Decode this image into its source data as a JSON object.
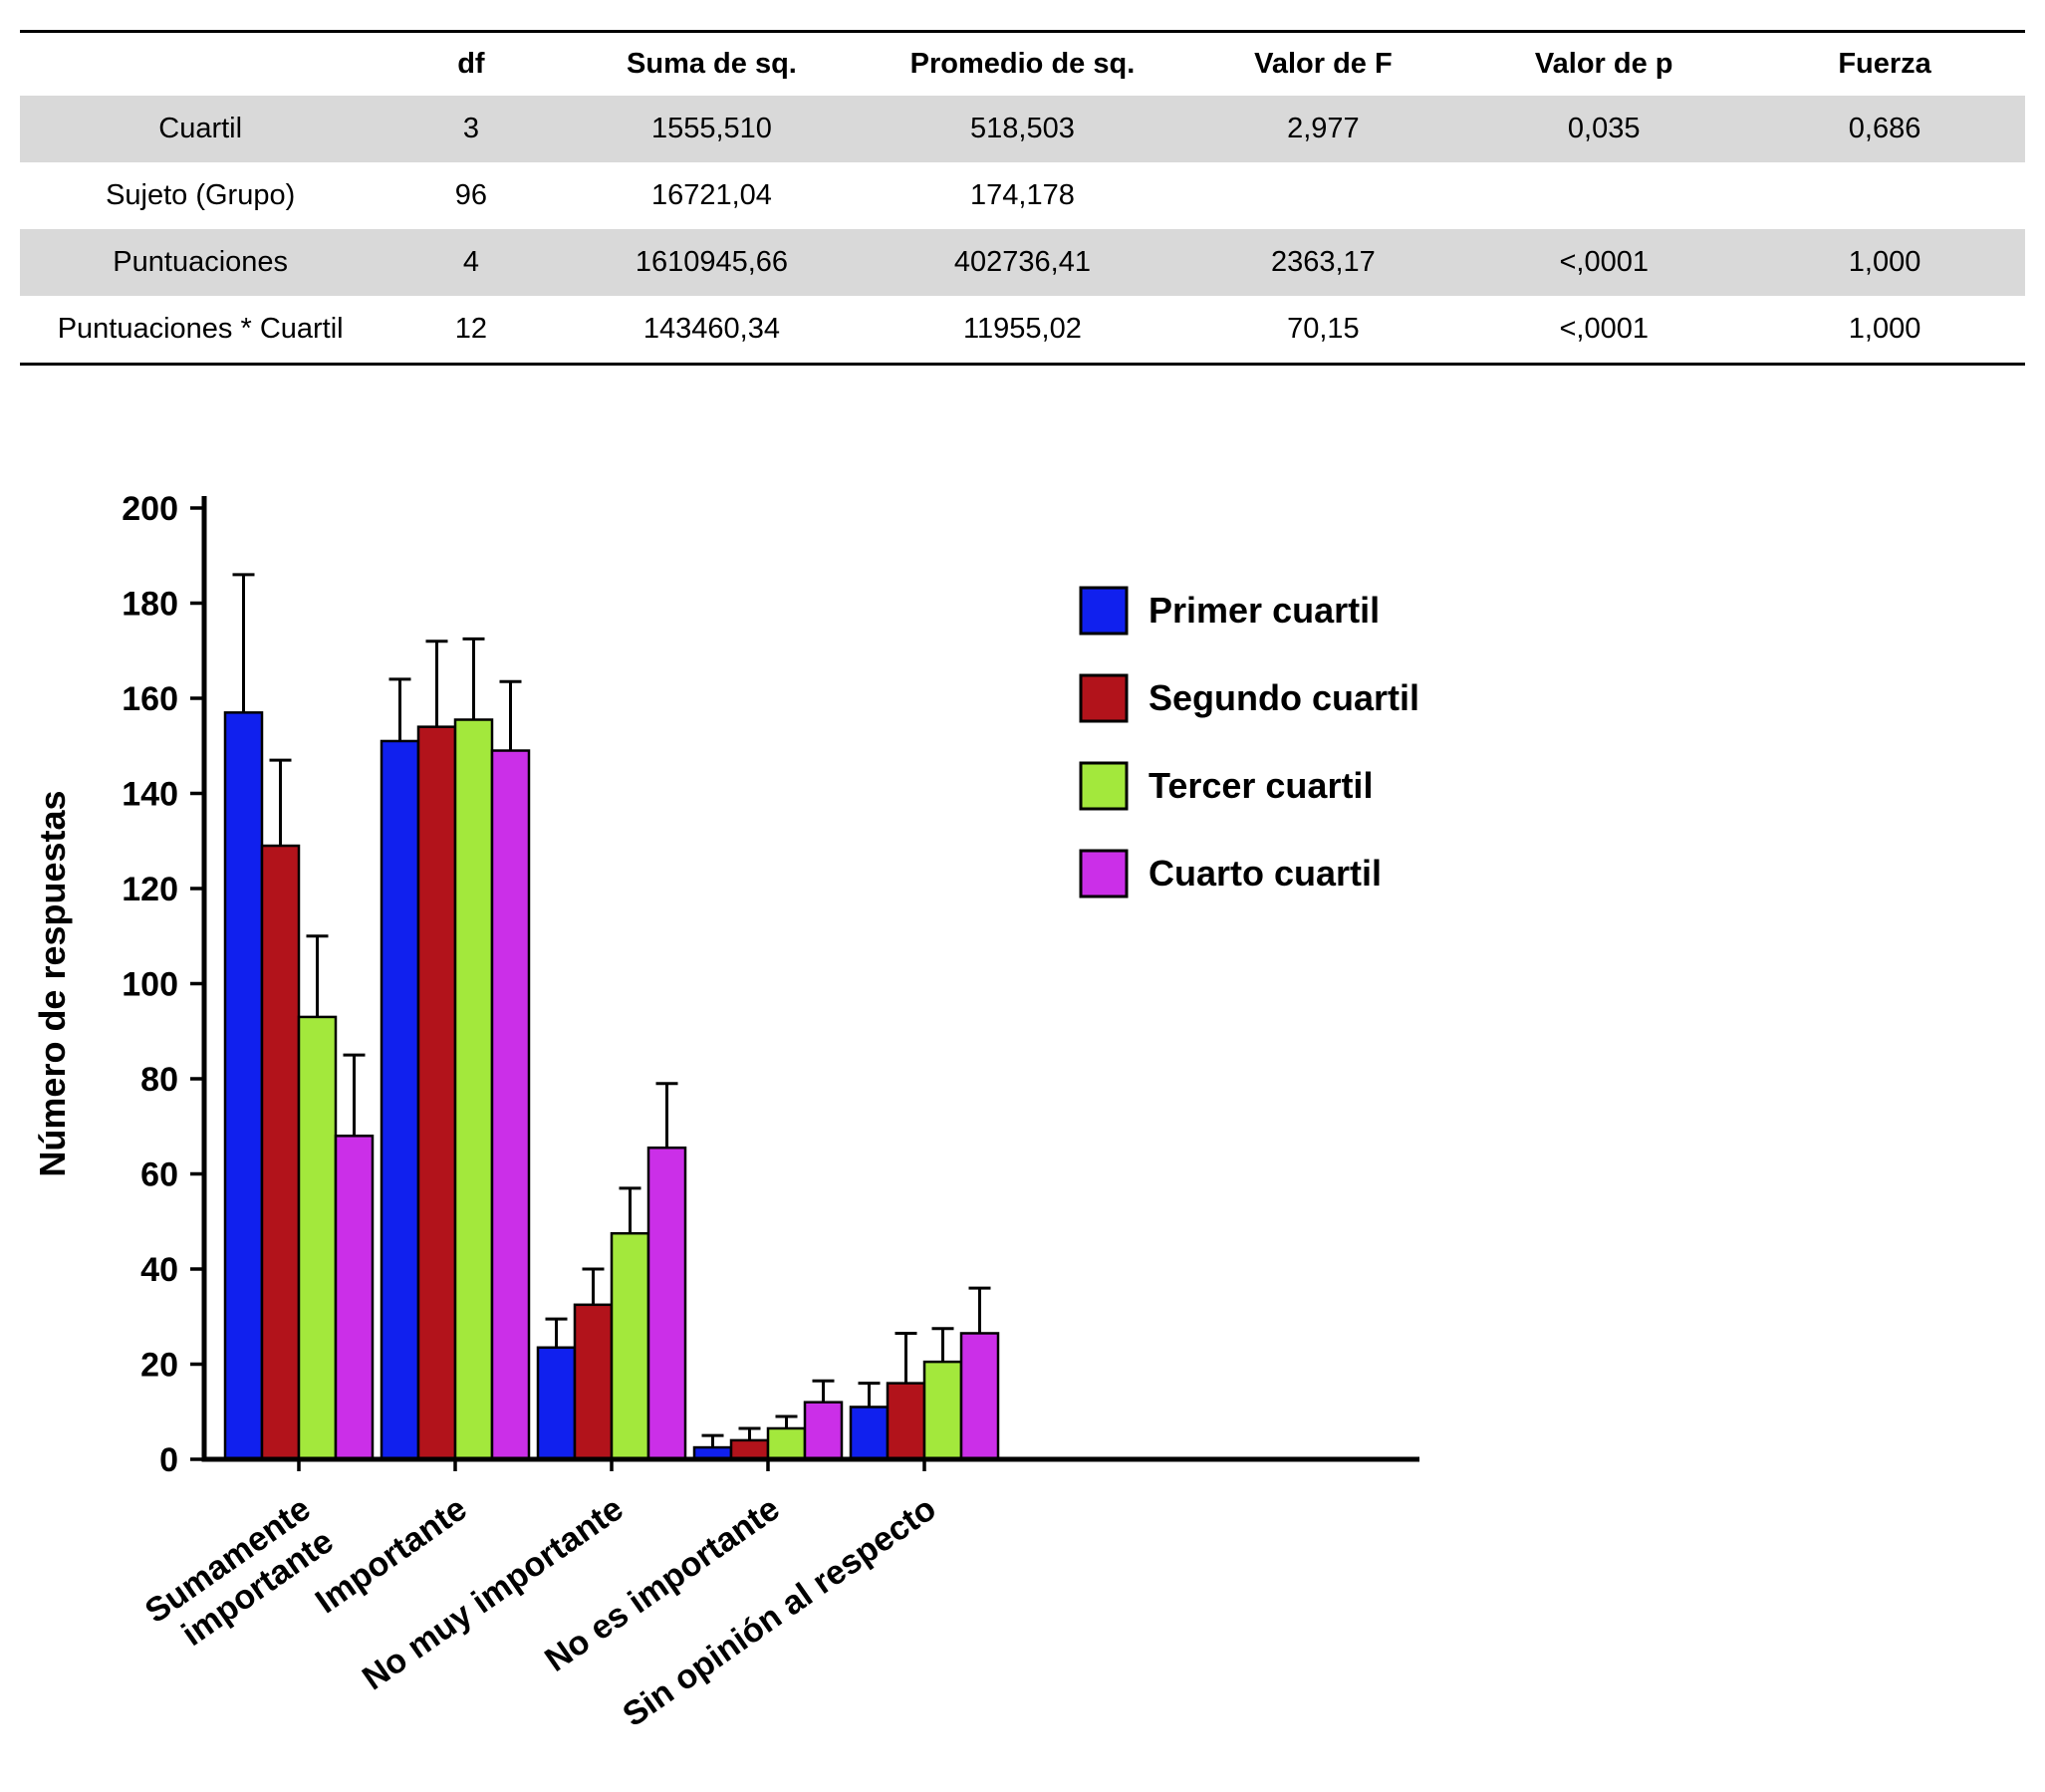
{
  "table": {
    "headers": [
      "",
      "df",
      "Suma de sq.",
      "Promedio de sq.",
      "Valor de F",
      "Valor de p",
      "Fuerza"
    ],
    "rows": [
      {
        "label": "Cuartil",
        "values": [
          "3",
          "1555,510",
          "518,503",
          "2,977",
          "0,035",
          "0,686"
        ],
        "shaded": true
      },
      {
        "label": "Sujeto (Grupo)",
        "values": [
          "96",
          "16721,04",
          "174,178",
          "",
          "",
          ""
        ],
        "shaded": false
      },
      {
        "label": "Puntuaciones",
        "values": [
          "4",
          "1610945,66",
          "402736,41",
          "2363,17",
          "<,0001",
          "1,000"
        ],
        "shaded": true
      },
      {
        "label": "Puntuaciones * Cuartil",
        "values": [
          "12",
          "143460,34",
          "11955,02",
          "70,15",
          "<,0001",
          "1,000"
        ],
        "shaded": false
      }
    ]
  },
  "chart_data": {
    "type": "bar",
    "title": "",
    "xlabel": "",
    "ylabel": "Número de respuestas",
    "ylim": [
      0,
      200
    ],
    "ytick_step": 20,
    "grid": false,
    "legend_position": "upper-right-inside",
    "categories": [
      "Sumamente\nimportante",
      "Importante",
      "No muy importante",
      "No es importante",
      "Sin opinión al respecto"
    ],
    "series": [
      {
        "name": "Primer cuartil",
        "color": "#1020EE",
        "values": [
          157,
          151,
          23.5,
          2.5,
          11
        ],
        "errors": [
          29,
          13,
          6,
          2.5,
          5
        ]
      },
      {
        "name": "Segundo cuartil",
        "color": "#B2131B",
        "values": [
          129,
          154,
          32.5,
          4,
          16
        ],
        "errors": [
          18,
          18,
          7.5,
          2.5,
          10.5
        ]
      },
      {
        "name": "Tercer cuartil",
        "color": "#A3E83C",
        "values": [
          93,
          155.5,
          47.5,
          6.5,
          20.5
        ],
        "errors": [
          17,
          17,
          9.5,
          2.5,
          7
        ]
      },
      {
        "name": "Cuarto cuartil",
        "color": "#CB2FE8",
        "values": [
          68,
          149,
          65.5,
          12,
          26.5
        ],
        "errors": [
          17,
          14.5,
          13.5,
          4.5,
          9.5
        ]
      }
    ]
  }
}
